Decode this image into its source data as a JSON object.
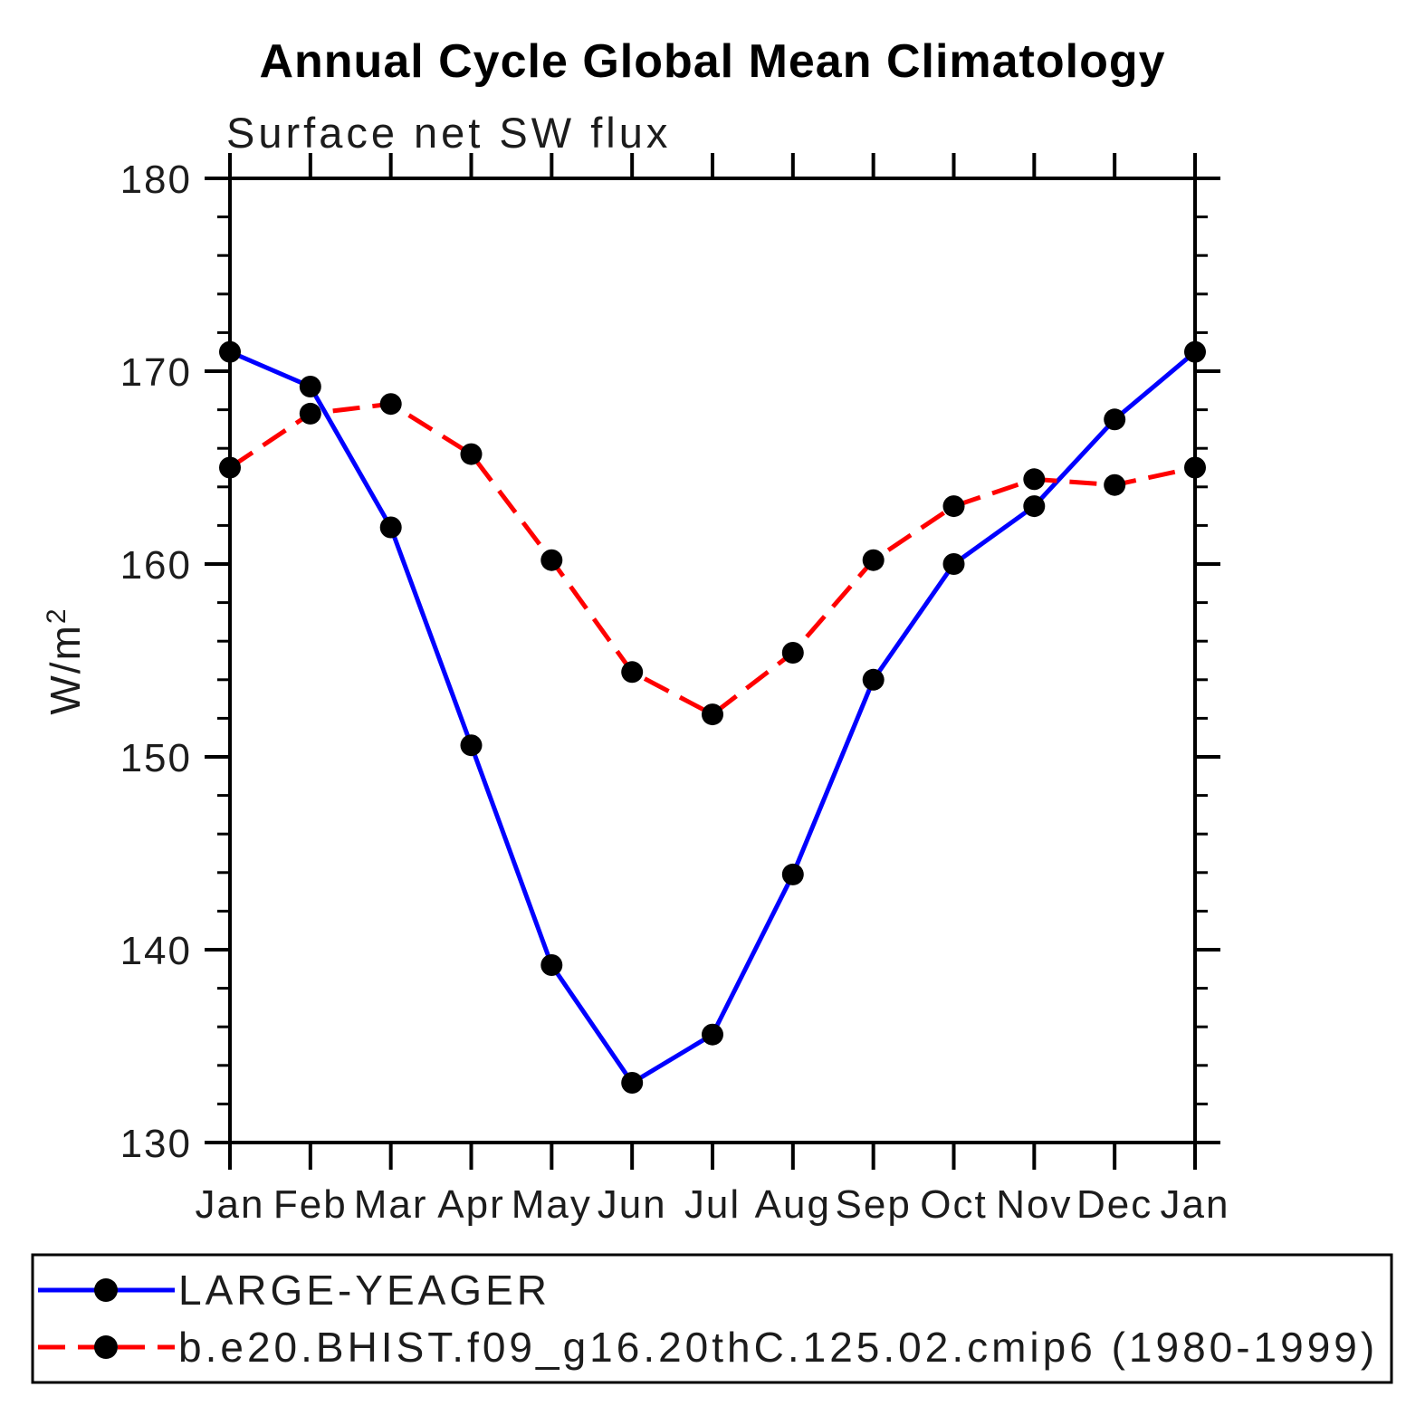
{
  "title": "Annual Cycle Global Mean Climatology",
  "subtitle": "Surface net SW flux",
  "y_axis": {
    "label": "W/m",
    "label_superscript": "2",
    "tick_labels": [
      "130",
      "140",
      "150",
      "160",
      "170",
      "180"
    ],
    "min": 130,
    "max": 180,
    "major_step": 10,
    "minor_step": 2
  },
  "x_axis": {
    "tick_labels": [
      "Jan",
      "Feb",
      "Mar",
      "Apr",
      "May",
      "Jun",
      "Jul",
      "Aug",
      "Sep",
      "Oct",
      "Nov",
      "Dec",
      "Jan"
    ]
  },
  "legend": {
    "entries": [
      {
        "label": "LARGE-YEAGER",
        "color": "#0000ff",
        "line_style": "solid",
        "marker": "filled-circle",
        "marker_color": "#000000"
      },
      {
        "label": "b.e20.BHIST.f09_g16.20thC.125.02.cmip6 (1980-1999)",
        "color": "#ff0000",
        "line_style": "dashed",
        "marker": "filled-circle",
        "marker_color": "#000000"
      }
    ]
  },
  "chart_data": {
    "type": "line",
    "categories": [
      "Jan",
      "Feb",
      "Mar",
      "Apr",
      "May",
      "Jun",
      "Jul",
      "Aug",
      "Sep",
      "Oct",
      "Nov",
      "Dec",
      "Jan"
    ],
    "series": [
      {
        "name": "LARGE-YEAGER",
        "color": "#0000ff",
        "style": "solid",
        "marker": "circle",
        "marker_color": "#000000",
        "values": [
          171.0,
          169.2,
          161.9,
          150.6,
          139.2,
          133.1,
          135.6,
          143.9,
          154.0,
          160.0,
          163.0,
          167.5,
          171.0
        ]
      },
      {
        "name": "b.e20.BHIST.f09_g16.20thC.125.02.cmip6 (1980-1999)",
        "color": "#ff0000",
        "style": "dashed",
        "marker": "circle",
        "marker_color": "#000000",
        "values": [
          165.0,
          167.8,
          168.3,
          165.7,
          160.2,
          154.4,
          152.2,
          155.4,
          160.2,
          163.0,
          164.4,
          164.1,
          165.0
        ]
      }
    ],
    "title": "Annual Cycle Global Mean Climatology",
    "subtitle": "Surface net SW flux",
    "xlabel": "",
    "ylabel": "W/m^2",
    "ylim": [
      130,
      180
    ],
    "y_major_step": 10,
    "y_minor_step": 2,
    "grid": false,
    "legend_position": "bottom-left-box"
  }
}
